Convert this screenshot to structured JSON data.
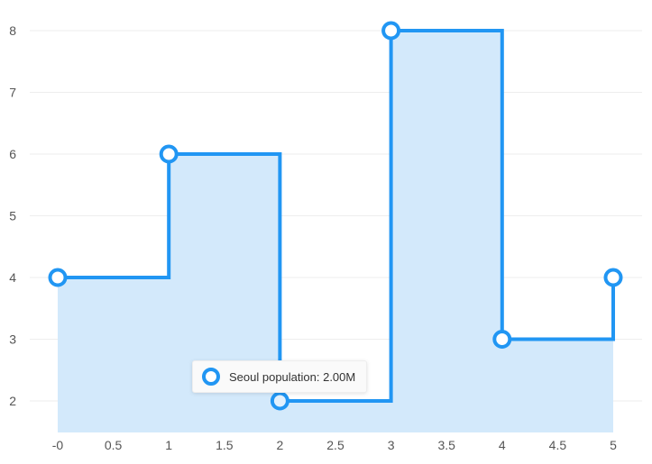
{
  "chart_data": {
    "type": "area",
    "step": "after",
    "x": [
      0,
      1,
      2,
      3,
      4,
      5
    ],
    "series": [
      {
        "values": [
          4,
          6,
          2,
          8,
          3,
          4
        ],
        "color": "#2196f3",
        "fill_color": "#d3e9fb"
      }
    ],
    "xlim": [
      -0.02,
      5.25
    ],
    "ylim": [
      1.5,
      8.25
    ],
    "x_ticks": [
      0,
      0.5,
      1,
      1.5,
      2,
      2.5,
      3,
      3.5,
      4,
      4.5,
      5
    ],
    "x_tick_labels": [
      "-0",
      "0.5",
      "1",
      "1.5",
      "2",
      "2.5",
      "3",
      "3.5",
      "4",
      "4.5",
      "5"
    ],
    "y_ticks": [
      2,
      3,
      4,
      5,
      6,
      7,
      8
    ],
    "y_tick_labels": [
      "2",
      "3",
      "4",
      "5",
      "6",
      "7",
      "8"
    ],
    "grid": "horizontal",
    "legend": "none",
    "tooltip": {
      "point_index": 2,
      "text": "Seoul population: 2.00M"
    }
  }
}
